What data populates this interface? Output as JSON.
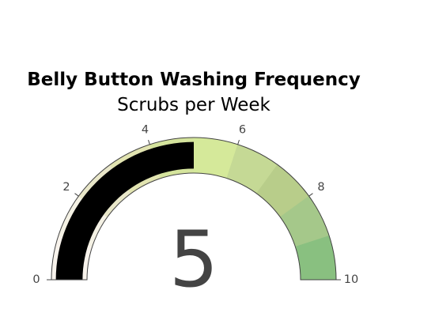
{
  "chart_data": {
    "type": "gauge",
    "title": "Belly Button Washing Frequency",
    "subtitle": "Scrubs per Week",
    "value": 5,
    "range": [
      0,
      10
    ],
    "ticks": [
      {
        "value": 0,
        "label": "0"
      },
      {
        "value": 2,
        "label": "2"
      },
      {
        "value": 4,
        "label": "4"
      },
      {
        "value": 6,
        "label": "6"
      },
      {
        "value": 8,
        "label": "8"
      },
      {
        "value": 10,
        "label": "10"
      }
    ],
    "steps": [
      {
        "range": [
          0,
          1
        ],
        "color": "#f8f3ec"
      },
      {
        "range": [
          1,
          2
        ],
        "color": "#f4f1e4"
      },
      {
        "range": [
          2,
          3
        ],
        "color": "#e9e7c9"
      },
      {
        "range": [
          3,
          4
        ],
        "color": "#e2e4b1"
      },
      {
        "range": [
          4,
          5
        ],
        "color": "#d5e49d"
      },
      {
        "range": [
          5,
          6
        ],
        "color": "#d5e99a"
      },
      {
        "range": [
          6,
          7
        ],
        "color": "#c5d995"
      },
      {
        "range": [
          7,
          8
        ],
        "color": "#b8cd8a"
      },
      {
        "range": [
          8,
          9
        ],
        "color": "#a5c88a"
      },
      {
        "range": [
          9,
          10
        ],
        "color": "#89c080"
      }
    ],
    "bar_color": "#000000"
  }
}
